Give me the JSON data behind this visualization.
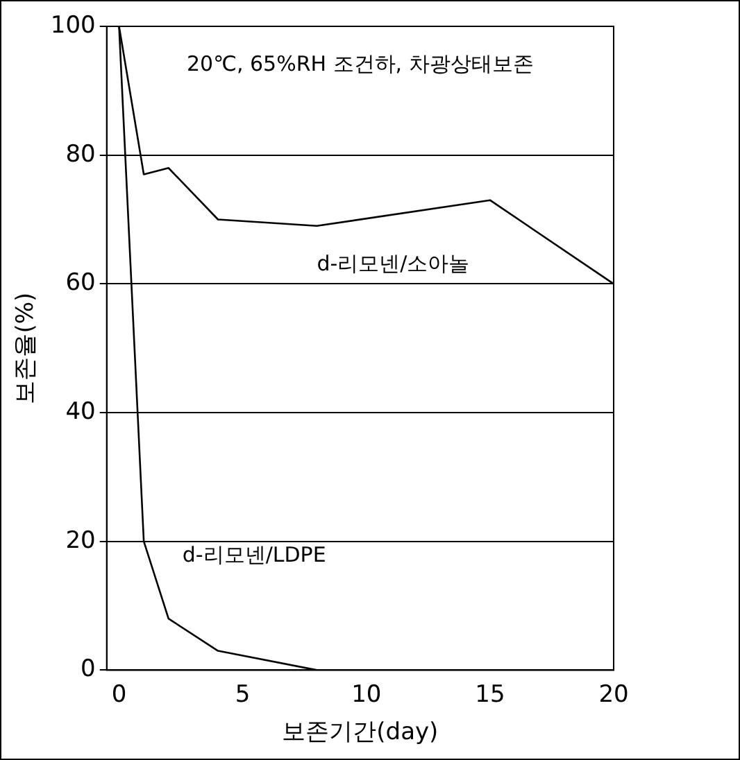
{
  "chart_data": {
    "type": "line",
    "xlabel": "보존기간(day)",
    "ylabel": "보존율(%)",
    "xlim": [
      -0.5,
      20
    ],
    "xticks": [
      0,
      5,
      10,
      15,
      20
    ],
    "ylim": [
      0,
      100
    ],
    "yticks": [
      0,
      20,
      40,
      60,
      80,
      100
    ],
    "grid": "y",
    "legend": false,
    "marker": "none",
    "line_style": "solid",
    "annotations": [
      "20℃, 65%RH 조건하, 차광상태보존"
    ],
    "series": [
      {
        "name": "d-리모넨/소아놀",
        "color": "#000000",
        "x": [
          0,
          1,
          2,
          4,
          8,
          15,
          20
        ],
        "values": [
          100,
          77,
          78,
          70,
          69,
          73,
          60
        ]
      },
      {
        "name": "d-리모넨/LDPE",
        "color": "#000000",
        "x": [
          0,
          1,
          2,
          4,
          8
        ],
        "values": [
          100,
          20,
          8,
          3,
          0
        ]
      }
    ]
  }
}
